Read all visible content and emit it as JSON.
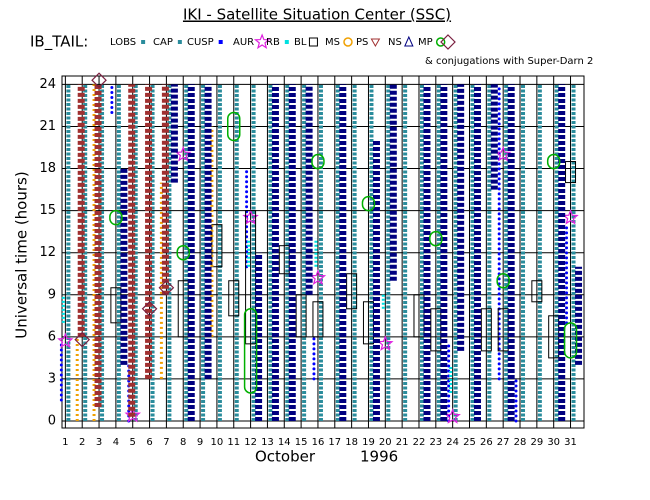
{
  "chart_data": {
    "type": "timeline",
    "title": "IKI - Satellite Situation Center (SSC)",
    "subtitle": "IB_TAIL:",
    "xlabel": "October",
    "xlabel_year": "1996",
    "ylabel": "Universal time (hours)",
    "xlim": [
      0.8,
      31.8
    ],
    "xticks": [
      1,
      2,
      3,
      4,
      5,
      6,
      7,
      8,
      9,
      10,
      11,
      12,
      13,
      14,
      15,
      16,
      17,
      18,
      19,
      20,
      21,
      22,
      23,
      24,
      25,
      26,
      27,
      28,
      29,
      30,
      31
    ],
    "ylim": [
      -0.5,
      24.6
    ],
    "yticks": [
      0,
      3,
      6,
      9,
      12,
      15,
      18,
      21,
      24
    ],
    "grid": true,
    "series": [
      {
        "name": "LOBS",
        "color": "#2a8c9c",
        "marker": "square",
        "x": [
          1,
          2,
          3,
          4,
          5,
          6,
          7,
          8,
          9,
          10,
          11,
          12,
          13,
          14,
          15,
          16,
          17,
          18,
          19,
          20,
          21,
          22,
          23,
          24,
          25,
          26,
          27,
          28,
          29,
          30,
          31
        ],
        "start": [
          0,
          0,
          0,
          0,
          0,
          0,
          0,
          0,
          0,
          0,
          0,
          0,
          0,
          0,
          0,
          0,
          0,
          0,
          0,
          0,
          0,
          0,
          0,
          0,
          0,
          0,
          0,
          0,
          0,
          0,
          0
        ],
        "end": [
          24,
          24,
          24,
          24,
          24,
          24,
          24,
          24,
          24,
          24,
          24,
          24,
          24,
          24,
          24,
          24,
          24,
          24,
          24,
          24,
          24,
          24,
          24,
          24,
          24,
          24,
          24,
          24,
          24,
          24,
          24
        ]
      },
      {
        "name": "CAP",
        "color": "#2a8c9c",
        "marker": "square",
        "x": [],
        "start": [],
        "end": []
      },
      {
        "name": "CUSP",
        "color": "#0000ff",
        "marker": "dot",
        "x": [
          1,
          4,
          5,
          12,
          16,
          24,
          27,
          28,
          31
        ],
        "start": [
          1.5,
          22,
          0,
          11,
          3,
          0,
          3,
          0,
          7
        ],
        "end": [
          5.5,
          24,
          4,
          18,
          6,
          5.5,
          24,
          3,
          14
        ]
      },
      {
        "name": "AUR",
        "color": "#e020e0",
        "marker": "star",
        "x": [
          1,
          5,
          8,
          12,
          16,
          20,
          24,
          27,
          31
        ],
        "y": [
          5.7,
          0.4,
          19,
          14.5,
          10.2,
          5.5,
          0.3,
          19,
          14.5
        ]
      },
      {
        "name": "RB",
        "color": "#00e0e0",
        "marker": "asterisk",
        "x": [
          1,
          12,
          16,
          20,
          24
        ],
        "start": [
          7,
          11,
          11,
          8,
          2
        ],
        "end": [
          9,
          13,
          13,
          9,
          4
        ]
      },
      {
        "name": "BL",
        "color": "#000000",
        "marker": "box",
        "x": [
          4,
          8,
          10,
          11,
          12,
          14,
          15,
          16,
          18,
          19,
          22,
          23,
          26,
          27,
          29,
          30,
          31
        ],
        "start": [
          7,
          6,
          11,
          7.5,
          5.5,
          10.5,
          6,
          6,
          8,
          5.5,
          6,
          5,
          5,
          5,
          8.5,
          4.5,
          17
        ],
        "end": [
          9.5,
          10,
          14,
          10,
          15,
          12.5,
          9,
          8.5,
          10.5,
          8.5,
          9,
          8,
          8,
          8,
          10,
          7.5,
          18.5
        ]
      },
      {
        "name": "MS",
        "color": "#f0a000",
        "marker": "circle-small",
        "x": [
          2,
          3,
          7,
          10
        ],
        "start": [
          0,
          0,
          3,
          6
        ],
        "end": [
          6,
          24,
          17,
          21
        ]
      },
      {
        "name": "PS",
        "color": "#a03030",
        "marker": "tri-down",
        "x": [
          2,
          3,
          5,
          6,
          7
        ],
        "start": [
          6,
          1,
          0.3,
          3,
          9
        ],
        "end": [
          24,
          24,
          24,
          24,
          24
        ]
      },
      {
        "name": "NS",
        "color": "#000080",
        "marker": "tri-up",
        "x": [
          4,
          7,
          8,
          9,
          12,
          13,
          14,
          15,
          17,
          19,
          20,
          22,
          23,
          24,
          25,
          26,
          27,
          30,
          31
        ],
        "start": [
          4,
          17,
          0,
          3,
          0,
          0,
          0,
          9,
          0,
          0,
          10,
          0,
          0,
          5,
          0,
          16.5,
          0,
          0,
          4
        ],
        "end": [
          18,
          24,
          24,
          24,
          12,
          24,
          24,
          24,
          24,
          20,
          24,
          24,
          24,
          24,
          24,
          24,
          24,
          24,
          11
        ]
      },
      {
        "name": "MP",
        "color": "#00b000",
        "marker": "circle",
        "x": [
          4,
          8,
          11,
          12,
          16,
          19,
          23,
          27,
          30,
          31
        ],
        "start": [
          14,
          11.5,
          20,
          2,
          18,
          15,
          12.5,
          9.5,
          18,
          4.5
        ],
        "end": [
          15,
          12.5,
          22,
          8,
          19,
          16,
          13.5,
          10.5,
          19,
          7
        ]
      },
      {
        "name": "& conjugations with Super-Darn 2",
        "color": "#7a2040",
        "marker": "diamond",
        "x": [
          2,
          3,
          6,
          7
        ],
        "y": [
          5.8,
          24.3,
          8,
          9.5
        ]
      }
    ]
  }
}
